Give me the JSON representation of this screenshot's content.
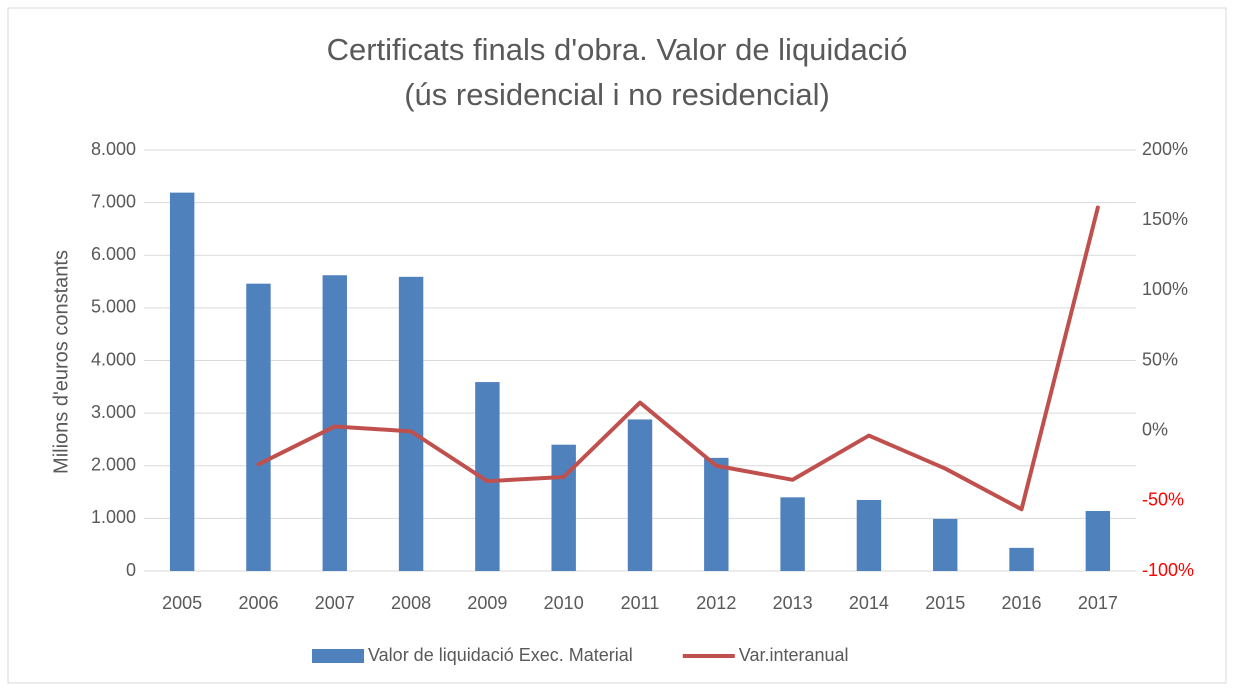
{
  "chart_data": {
    "type": "bar",
    "title": [
      "Certificats finals d'obra. Valor de liquidació",
      "(ús residencial i no residencial)"
    ],
    "ylabel": "Milions d'euros constants",
    "categories": [
      "2005",
      "2006",
      "2007",
      "2008",
      "2009",
      "2010",
      "2011",
      "2012",
      "2013",
      "2014",
      "2015",
      "2016",
      "2017"
    ],
    "series": [
      {
        "name": "Valor de liquidació Exec. Material",
        "type": "bar",
        "color": "#4f81bd",
        "values": [
          7190,
          5460,
          5620,
          5590,
          3590,
          2400,
          2880,
          2150,
          1400,
          1350,
          990,
          440,
          1140
        ]
      },
      {
        "name": "Var.interanual",
        "type": "line",
        "axis": "y2",
        "color": "#c0504d",
        "values": [
          null,
          -24,
          3,
          -0.5,
          -36,
          -33,
          20,
          -25,
          -35,
          -3.5,
          -27,
          -56,
          159
        ]
      }
    ],
    "ylim": [
      0,
      8000
    ],
    "yticks": [
      0,
      {
        "value": 1000,
        "label": "1.000"
      },
      {
        "value": 2000,
        "label": "2.000"
      },
      {
        "value": 3000,
        "label": "3.000"
      },
      {
        "value": 4000,
        "label": "4.000"
      },
      {
        "value": 5000,
        "label": "5.000"
      },
      {
        "value": 6000,
        "label": "6.000"
      },
      {
        "value": 7000,
        "label": "7.000"
      },
      {
        "value": 8000,
        "label": "8.000"
      }
    ],
    "y2lim": [
      -100,
      200
    ],
    "y2ticks": [
      {
        "value": -100,
        "label": "-100%"
      },
      {
        "value": -50,
        "label": "-50%"
      },
      {
        "value": 0,
        "label": "0%"
      },
      {
        "value": 50,
        "label": "50%"
      },
      {
        "value": 100,
        "label": "100%"
      },
      {
        "value": 150,
        "label": "150%"
      },
      {
        "value": 200,
        "label": "200%"
      }
    ],
    "y2_negative_tick_color": "#ff0000",
    "grid": true,
    "legend": "bottom"
  }
}
